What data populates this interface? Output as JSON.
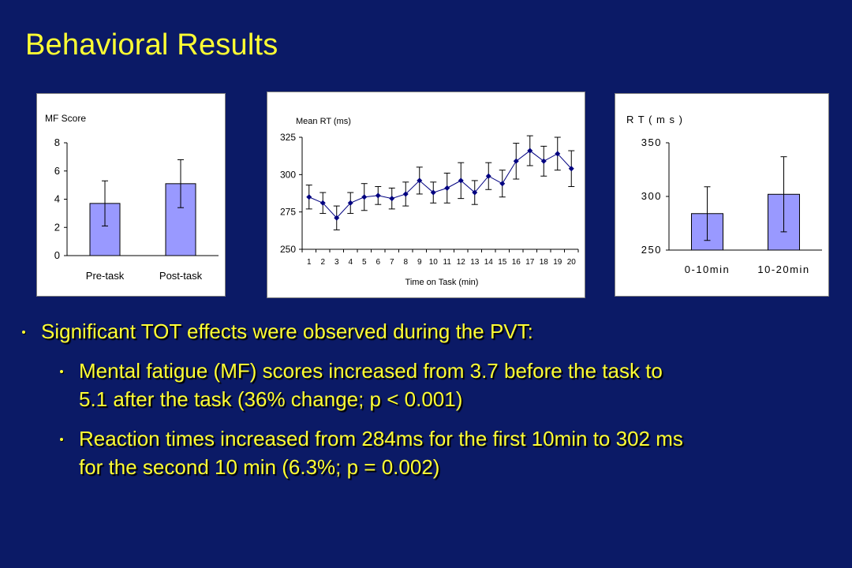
{
  "slide": {
    "title": "Behavioral Results"
  },
  "colors": {
    "background": "#0b1a66",
    "title_text": "#ffff33",
    "bar_fill": "#9999ff",
    "line_marker": "#000080"
  },
  "chart_data": [
    {
      "type": "bar",
      "ylabel": "MF Score",
      "categories": [
        "Pre-task",
        "Post-task"
      ],
      "values": [
        3.7,
        5.1
      ],
      "error": [
        1.6,
        1.7
      ],
      "ylim": [
        0,
        8
      ],
      "yticks": [
        "0",
        "2",
        "4",
        "6",
        "8"
      ],
      "grid": false
    },
    {
      "type": "line",
      "ylabel": "Mean RT (ms)",
      "xlabel": "Time on Task (min)",
      "x": [
        "1",
        "2",
        "3",
        "4",
        "5",
        "6",
        "7",
        "8",
        "9",
        "10",
        "11",
        "12",
        "13",
        "14",
        "15",
        "16",
        "17",
        "18",
        "19",
        "20"
      ],
      "values": [
        285,
        281,
        271,
        281,
        285,
        286,
        284,
        287,
        296,
        288,
        291,
        296,
        288,
        299,
        294,
        309,
        316,
        309,
        314,
        304
      ],
      "error": [
        8,
        7,
        8,
        7,
        9,
        6,
        7,
        8,
        9,
        7,
        10,
        12,
        8,
        9,
        9,
        12,
        10,
        10,
        11,
        12
      ],
      "ylim": [
        250,
        325
      ],
      "yticks": [
        "250",
        "275",
        "300",
        "325"
      ],
      "grid": false
    },
    {
      "type": "bar",
      "ylabel": "R T  ( m s )",
      "categories": [
        "0-10min",
        "10-20min"
      ],
      "values": [
        284,
        302
      ],
      "error": [
        25,
        35
      ],
      "ylim": [
        250,
        350
      ],
      "yticks": [
        "250",
        "300",
        "350"
      ],
      "grid": false
    }
  ],
  "bullets": {
    "main": "Significant TOT effects were observed  during the PVT:",
    "items": [
      {
        "line1": "Mental fatigue (MF) scores increased from 3.7 before the task to",
        "line2": "5.1 after the task (36% change;  p < 0.001)"
      },
      {
        "line1": "Reaction times increased from 284ms for the first 10min to 302 ms",
        "line2": "for the second 10 min (6.3%;  p = 0.002)"
      }
    ]
  }
}
